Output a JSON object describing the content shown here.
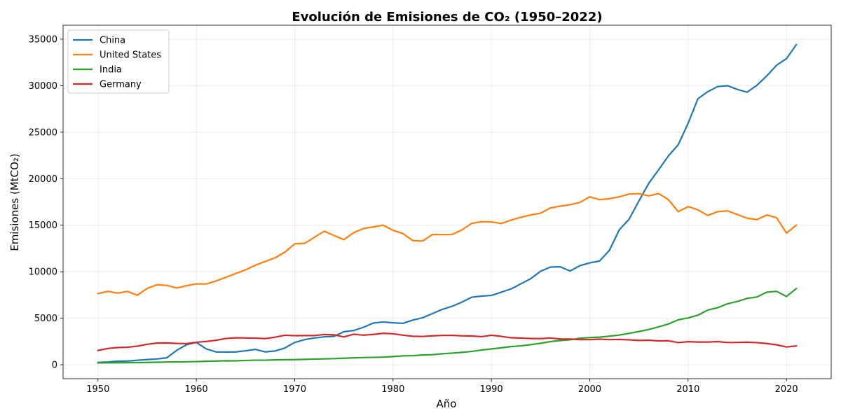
{
  "chart_data": {
    "type": "line",
    "title": "Evolución de Emisiones de CO₂ (1950–2022)",
    "xlabel": "Año",
    "ylabel": "Emisiones (MtCO₂)",
    "xlim": [
      1946.45,
      2024.55
    ],
    "ylim": [
      -1500,
      36500
    ],
    "xticks": [
      1950,
      1960,
      1970,
      1980,
      1990,
      2000,
      2010,
      2020
    ],
    "yticks": [
      0,
      5000,
      10000,
      15000,
      20000,
      25000,
      30000,
      35000
    ],
    "grid": true,
    "legend_position": "upper-left",
    "x": [
      1950,
      1951,
      1952,
      1953,
      1954,
      1955,
      1956,
      1957,
      1958,
      1959,
      1960,
      1961,
      1962,
      1963,
      1964,
      1965,
      1966,
      1967,
      1968,
      1969,
      1970,
      1971,
      1972,
      1973,
      1974,
      1975,
      1976,
      1977,
      1978,
      1979,
      1980,
      1981,
      1982,
      1983,
      1984,
      1985,
      1986,
      1987,
      1988,
      1989,
      1990,
      1991,
      1992,
      1993,
      1994,
      1995,
      1996,
      1997,
      1998,
      1999,
      2000,
      2001,
      2002,
      2003,
      2004,
      2005,
      2006,
      2007,
      2008,
      2009,
      2010,
      2011,
      2012,
      2013,
      2014,
      2015,
      2016,
      2017,
      2018,
      2019,
      2020,
      2021
    ],
    "series": [
      {
        "name": "China",
        "color": "#1f77b4",
        "values": [
          250,
          300,
          380,
          400,
          480,
          560,
          620,
          750,
          1550,
          2150,
          2400,
          1700,
          1380,
          1370,
          1380,
          1500,
          1650,
          1380,
          1480,
          1800,
          2400,
          2700,
          2880,
          3000,
          3050,
          3550,
          3680,
          4030,
          4480,
          4600,
          4510,
          4450,
          4800,
          5050,
          5500,
          5950,
          6280,
          6730,
          7260,
          7380,
          7450,
          7800,
          8150,
          8700,
          9250,
          10050,
          10500,
          10530,
          10080,
          10650,
          10950,
          11150,
          12300,
          14500,
          15650,
          17600,
          19500,
          20950,
          22450,
          23650,
          25950,
          28600,
          29350,
          29900,
          30000,
          29600,
          29300,
          30050,
          31050,
          32200,
          32900,
          34400
        ]
      },
      {
        "name": "United States",
        "color": "#ff7f0e",
        "values": [
          7650,
          7890,
          7700,
          7880,
          7470,
          8200,
          8600,
          8530,
          8250,
          8500,
          8700,
          8680,
          9000,
          9400,
          9800,
          10200,
          10700,
          11100,
          11500,
          12100,
          13000,
          13050,
          13700,
          14350,
          13900,
          13450,
          14200,
          14650,
          14820,
          15000,
          14450,
          14100,
          13350,
          13300,
          14000,
          13990,
          14000,
          14500,
          15200,
          15380,
          15350,
          15180,
          15550,
          15850,
          16100,
          16300,
          16850,
          17050,
          17200,
          17450,
          18050,
          17750,
          17850,
          18050,
          18350,
          18400,
          18150,
          18400,
          17750,
          16450,
          17000,
          16650,
          16050,
          16450,
          16550,
          16150,
          15750,
          15600,
          16100,
          15800,
          14150,
          15000
        ]
      },
      {
        "name": "India",
        "color": "#2ca02c",
        "values": [
          200,
          210,
          210,
          220,
          230,
          250,
          270,
          290,
          300,
          320,
          340,
          370,
          400,
          430,
          420,
          460,
          490,
          490,
          520,
          540,
          550,
          580,
          610,
          630,
          660,
          700,
          740,
          770,
          790,
          820,
          880,
          950,
          980,
          1050,
          1080,
          1180,
          1250,
          1330,
          1430,
          1580,
          1700,
          1820,
          1950,
          2030,
          2160,
          2310,
          2490,
          2600,
          2680,
          2850,
          2920,
          2970,
          3070,
          3190,
          3380,
          3570,
          3790,
          4070,
          4380,
          4830,
          5030,
          5330,
          5880,
          6130,
          6550,
          6800,
          7130,
          7290,
          7800,
          7890,
          7340,
          8180
        ]
      },
      {
        "name": "Germany",
        "color": "#d62728",
        "values": [
          1530,
          1750,
          1850,
          1880,
          2000,
          2200,
          2330,
          2350,
          2290,
          2270,
          2420,
          2500,
          2630,
          2820,
          2900,
          2880,
          2860,
          2810,
          2960,
          3170,
          3130,
          3140,
          3140,
          3250,
          3220,
          2990,
          3280,
          3180,
          3260,
          3380,
          3330,
          3180,
          3060,
          3040,
          3110,
          3150,
          3160,
          3110,
          3090,
          3020,
          3170,
          3050,
          2900,
          2870,
          2820,
          2810,
          2880,
          2760,
          2760,
          2700,
          2700,
          2750,
          2700,
          2720,
          2680,
          2610,
          2640,
          2560,
          2580,
          2380,
          2480,
          2440,
          2440,
          2490,
          2390,
          2400,
          2420,
          2380,
          2280,
          2140,
          1910,
          2020
        ]
      }
    ]
  }
}
